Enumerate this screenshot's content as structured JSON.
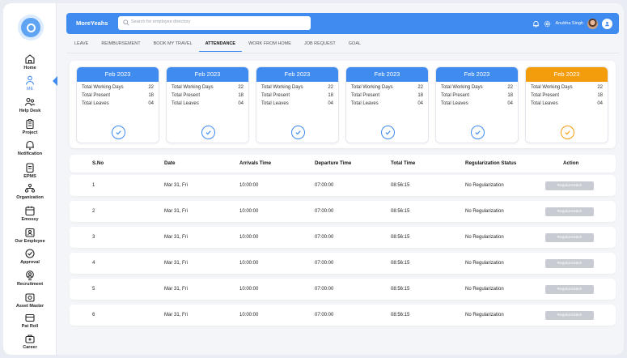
{
  "brand": "MoreYeahs",
  "search": {
    "placeholder": "Search for employee directory"
  },
  "user": {
    "name": "Anubha Singh"
  },
  "sidebar": {
    "items": [
      {
        "label": "Home",
        "icon": "home-icon"
      },
      {
        "label": "ME",
        "icon": "user-icon"
      },
      {
        "label": "Help Desk",
        "icon": "help-desk-icon"
      },
      {
        "label": "Project",
        "icon": "project-icon"
      },
      {
        "label": "Notification",
        "icon": "bell-icon"
      },
      {
        "label": "EPMS",
        "icon": "document-icon"
      },
      {
        "label": "Organization",
        "icon": "organization-icon"
      },
      {
        "label": "Emossy",
        "icon": "calendar-icon"
      },
      {
        "label": "Our Employee",
        "icon": "id-card-icon"
      },
      {
        "label": "Approval",
        "icon": "check-circle-icon"
      },
      {
        "label": "Recruitment",
        "icon": "recruitment-icon"
      },
      {
        "label": "Asset Master",
        "icon": "asset-icon"
      },
      {
        "label": "Pat Roll",
        "icon": "wallet-icon"
      },
      {
        "label": "Career",
        "icon": "briefcase-icon"
      }
    ]
  },
  "tabs": [
    "LEAVE",
    "REIMBURSEMENT",
    "BOOK MY TRAVEL",
    "ATTENDANCE",
    "WORK FROM HOME",
    "JOB REQUEST",
    "GOAL"
  ],
  "active_tab": "ATTENDANCE",
  "cards": [
    {
      "month": "Feb 2023",
      "working_label": "Total Working Days",
      "working": "22",
      "present_label": "Total Present",
      "present": "18",
      "leaves_label": "Total Leaves",
      "leaves": "04",
      "color": "#3f8bf0"
    },
    {
      "month": "Feb 2023",
      "working_label": "Total Working Days",
      "working": "22",
      "present_label": "Total Present",
      "present": "18",
      "leaves_label": "Total Leaves",
      "leaves": "04",
      "color": "#3f8bf0"
    },
    {
      "month": "Feb 2023",
      "working_label": "Total Working Days",
      "working": "22",
      "present_label": "Total Present",
      "present": "18",
      "leaves_label": "Total Leaves",
      "leaves": "04",
      "color": "#3f8bf0"
    },
    {
      "month": "Feb 2023",
      "working_label": "Total Working Days",
      "working": "22",
      "present_label": "Total Present",
      "present": "18",
      "leaves_label": "Total Leaves",
      "leaves": "04",
      "color": "#3f8bf0"
    },
    {
      "month": "Feb 2023",
      "working_label": "Total Working Days",
      "working": "22",
      "present_label": "Total Present",
      "present": "18",
      "leaves_label": "Total Leaves",
      "leaves": "04",
      "color": "#3f8bf0"
    },
    {
      "month": "Feb 2023",
      "working_label": "Total Working Days",
      "working": "22",
      "present_label": "Total Present",
      "present": "18",
      "leaves_label": "Total Leaves",
      "leaves": "04",
      "color": "#f39c0c"
    }
  ],
  "table": {
    "headers": [
      "S.No",
      "Date",
      "Arrivals Time",
      "Departure Time",
      "Total Time",
      "Regularization Status",
      "Action"
    ],
    "rows": [
      [
        "1",
        "Mar 31, Fri",
        "10:00:00",
        "07:00:00",
        "08:56:15",
        "No Regularization"
      ],
      [
        "2",
        "Mar 31, Fri",
        "10:00:00",
        "07:00:00",
        "08:56:15",
        "No Regularization"
      ],
      [
        "3",
        "Mar 31, Fri",
        "10:00:00",
        "07:00:00",
        "08:56:15",
        "No Regularization"
      ],
      [
        "4",
        "Mar 31, Fri",
        "10:00:00",
        "07:00:00",
        "08:56:15",
        "No Regularization"
      ],
      [
        "5",
        "Mar 31, Fri",
        "10:00:00",
        "07:00:00",
        "08:56:15",
        "No Regularization"
      ],
      [
        "6",
        "Mar 31, Fri",
        "10:00:00",
        "07:00:00",
        "08:56:15",
        "No Regularization"
      ]
    ],
    "action_label": "Regularization"
  },
  "colors": {
    "accent": "#3f8bf0",
    "highlight": "#f39c0c",
    "button_disabled": "#c8ccd2"
  }
}
